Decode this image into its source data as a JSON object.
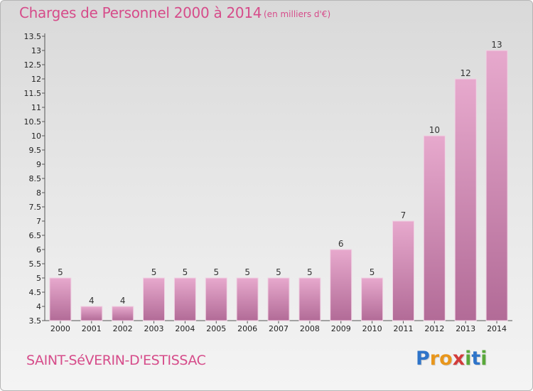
{
  "title": "Charges de Personnel 2000 à 2014",
  "subtitle": "(en milliers d'€)",
  "city": "SAINT-SéVERIN-D'ESTISSAC",
  "logo": {
    "letters": [
      "P",
      "r",
      "o",
      "x",
      "i",
      "t",
      "i"
    ],
    "colors": [
      "#2e74c9",
      "#e8961c",
      "#e8961c",
      "#d23b3b",
      "#59a83a",
      "#2e74c9",
      "#59a83a"
    ]
  },
  "colors": {
    "accent": "#d64c8a",
    "bar_top": "#e7a9cd",
    "bar_bottom": "#b26b97"
  },
  "chart_data": {
    "type": "bar",
    "title": "Charges de Personnel 2000 à 2014",
    "subtitle": "(en milliers d'€)",
    "xlabel": "",
    "ylabel": "",
    "categories": [
      "2000",
      "2001",
      "2002",
      "2003",
      "2004",
      "2005",
      "2006",
      "2007",
      "2008",
      "2009",
      "2010",
      "2011",
      "2012",
      "2013",
      "2014"
    ],
    "values": [
      5,
      4,
      4,
      5,
      5,
      5,
      5,
      5,
      5,
      6,
      5,
      7,
      10,
      12,
      13
    ],
    "ylim": [
      3.5,
      13.5
    ],
    "yticks": [
      "3.5",
      "4",
      "4.5",
      "5",
      "5.5",
      "6",
      "6.5",
      "7",
      "7.5",
      "8",
      "8.5",
      "9",
      "9.5",
      "10",
      "10.5",
      "11",
      "11.5",
      "12",
      "12.5",
      "13",
      "13.5"
    ],
    "data_labels": [
      "5",
      "4",
      "4",
      "5",
      "5",
      "5",
      "5",
      "5",
      "5",
      "6",
      "5",
      "7",
      "10",
      "12",
      "13"
    ],
    "grid": false,
    "legend": "none"
  }
}
